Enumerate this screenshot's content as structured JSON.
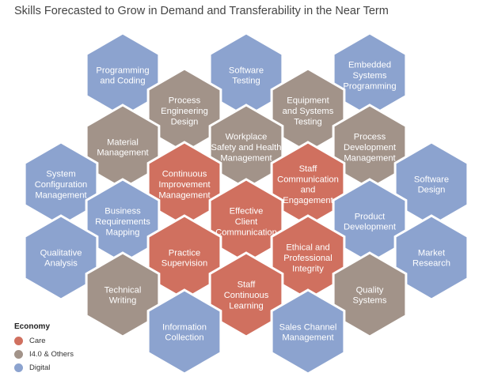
{
  "title": "Skills Forecasted to Grow in Demand and Transferability in the Near Term",
  "colors": {
    "care": "#d0705f",
    "industry": "#a29389",
    "digital": "#8ca3cf"
  },
  "legend": {
    "title": "Economy",
    "items": [
      {
        "label": "Care",
        "category": "care"
      },
      {
        "label": "I4.0 & Others",
        "category": "industry"
      },
      {
        "label": "Digital",
        "category": "digital"
      }
    ]
  },
  "skills": [
    {
      "id": "programming-and-coding",
      "lines": [
        "Programming",
        "and Coding"
      ],
      "category": "digital"
    },
    {
      "id": "software-testing",
      "lines": [
        "Software",
        "Testing"
      ],
      "category": "digital"
    },
    {
      "id": "embedded-systems-programming",
      "lines": [
        "Embedded",
        "Systems",
        "Programming"
      ],
      "category": "digital"
    },
    {
      "id": "process-engineering-design",
      "lines": [
        "Process",
        "Engineering",
        "Design"
      ],
      "category": "industry"
    },
    {
      "id": "equipment-and-systems-testing",
      "lines": [
        "Equipment",
        "and Systems",
        "Testing"
      ],
      "category": "industry"
    },
    {
      "id": "material-management",
      "lines": [
        "Material",
        "Management"
      ],
      "category": "industry"
    },
    {
      "id": "workplace-safety-and-health-management",
      "lines": [
        "Workplace",
        "Safety and Health",
        "Management"
      ],
      "category": "industry"
    },
    {
      "id": "process-development-management",
      "lines": [
        "Process",
        "Development",
        "Management"
      ],
      "category": "industry"
    },
    {
      "id": "system-configuration-management",
      "lines": [
        "System",
        "Configuration",
        "Management"
      ],
      "category": "digital"
    },
    {
      "id": "continuous-improvement-management",
      "lines": [
        "Continuous",
        "Improvement",
        "Management"
      ],
      "category": "care"
    },
    {
      "id": "staff-communication-and-engagement",
      "lines": [
        "Staff",
        "Communication",
        "and",
        "Engagement"
      ],
      "category": "care"
    },
    {
      "id": "software-design",
      "lines": [
        "Software",
        "Design"
      ],
      "category": "digital"
    },
    {
      "id": "business-requirements-mapping",
      "lines": [
        "Business",
        "Requirements",
        "Mapping"
      ],
      "category": "digital"
    },
    {
      "id": "effective-client-communication",
      "lines": [
        "Effective",
        "Client",
        "Communication"
      ],
      "category": "care"
    },
    {
      "id": "product-development",
      "lines": [
        "Product",
        "Development"
      ],
      "category": "digital"
    },
    {
      "id": "qualitative-analysis",
      "lines": [
        "Qualitative",
        "Analysis"
      ],
      "category": "digital"
    },
    {
      "id": "practice-supervision",
      "lines": [
        "Practice",
        "Supervision"
      ],
      "category": "care"
    },
    {
      "id": "ethical-and-professional-integrity",
      "lines": [
        "Ethical and",
        "Professional",
        "Integrity"
      ],
      "category": "care"
    },
    {
      "id": "market-research",
      "lines": [
        "Market",
        "Research"
      ],
      "category": "digital"
    },
    {
      "id": "technical-writing",
      "lines": [
        "Technical",
        "Writing"
      ],
      "category": "industry"
    },
    {
      "id": "staff-continuous-learning",
      "lines": [
        "Staff",
        "Continuous",
        "Learning"
      ],
      "category": "care"
    },
    {
      "id": "quality-systems",
      "lines": [
        "Quality",
        "Systems"
      ],
      "category": "industry"
    },
    {
      "id": "information-collection",
      "lines": [
        "Information",
        "Collection"
      ],
      "category": "digital"
    },
    {
      "id": "sales-channel-management",
      "lines": [
        "Sales Channel",
        "Management"
      ],
      "category": "digital"
    }
  ]
}
